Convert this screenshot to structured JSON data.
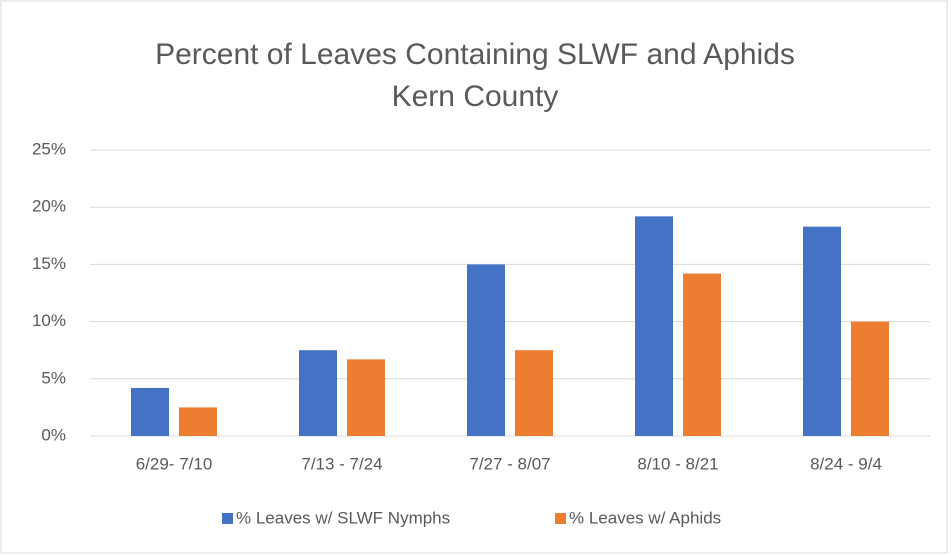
{
  "chart_data": {
    "type": "bar",
    "title": "Percent of Leaves Containing SLWF and Aphids",
    "subtitle": "Kern County",
    "categories": [
      "6/29- 7/10",
      "7/13 - 7/24",
      "7/27 - 8/07",
      "8/10 - 8/21",
      "8/24 - 9/4"
    ],
    "series": [
      {
        "name": "% Leaves w/ SLWF Nymphs",
        "color": "#4472c4",
        "values": [
          4.2,
          7.5,
          15,
          19.2,
          18.3
        ]
      },
      {
        "name": "% Leaves w/ Aphids",
        "color": "#ed7d31",
        "values": [
          2.5,
          6.7,
          7.5,
          14.2,
          10
        ]
      }
    ],
    "ylim": [
      0,
      25
    ],
    "yticks": [
      {
        "value": 0,
        "label": "0%"
      },
      {
        "value": 5,
        "label": "5%"
      },
      {
        "value": 10,
        "label": "10%"
      },
      {
        "value": 15,
        "label": "15%"
      },
      {
        "value": 20,
        "label": "20%"
      },
      {
        "value": 25,
        "label": "25%"
      }
    ],
    "grid": true,
    "legend": "bottom"
  }
}
